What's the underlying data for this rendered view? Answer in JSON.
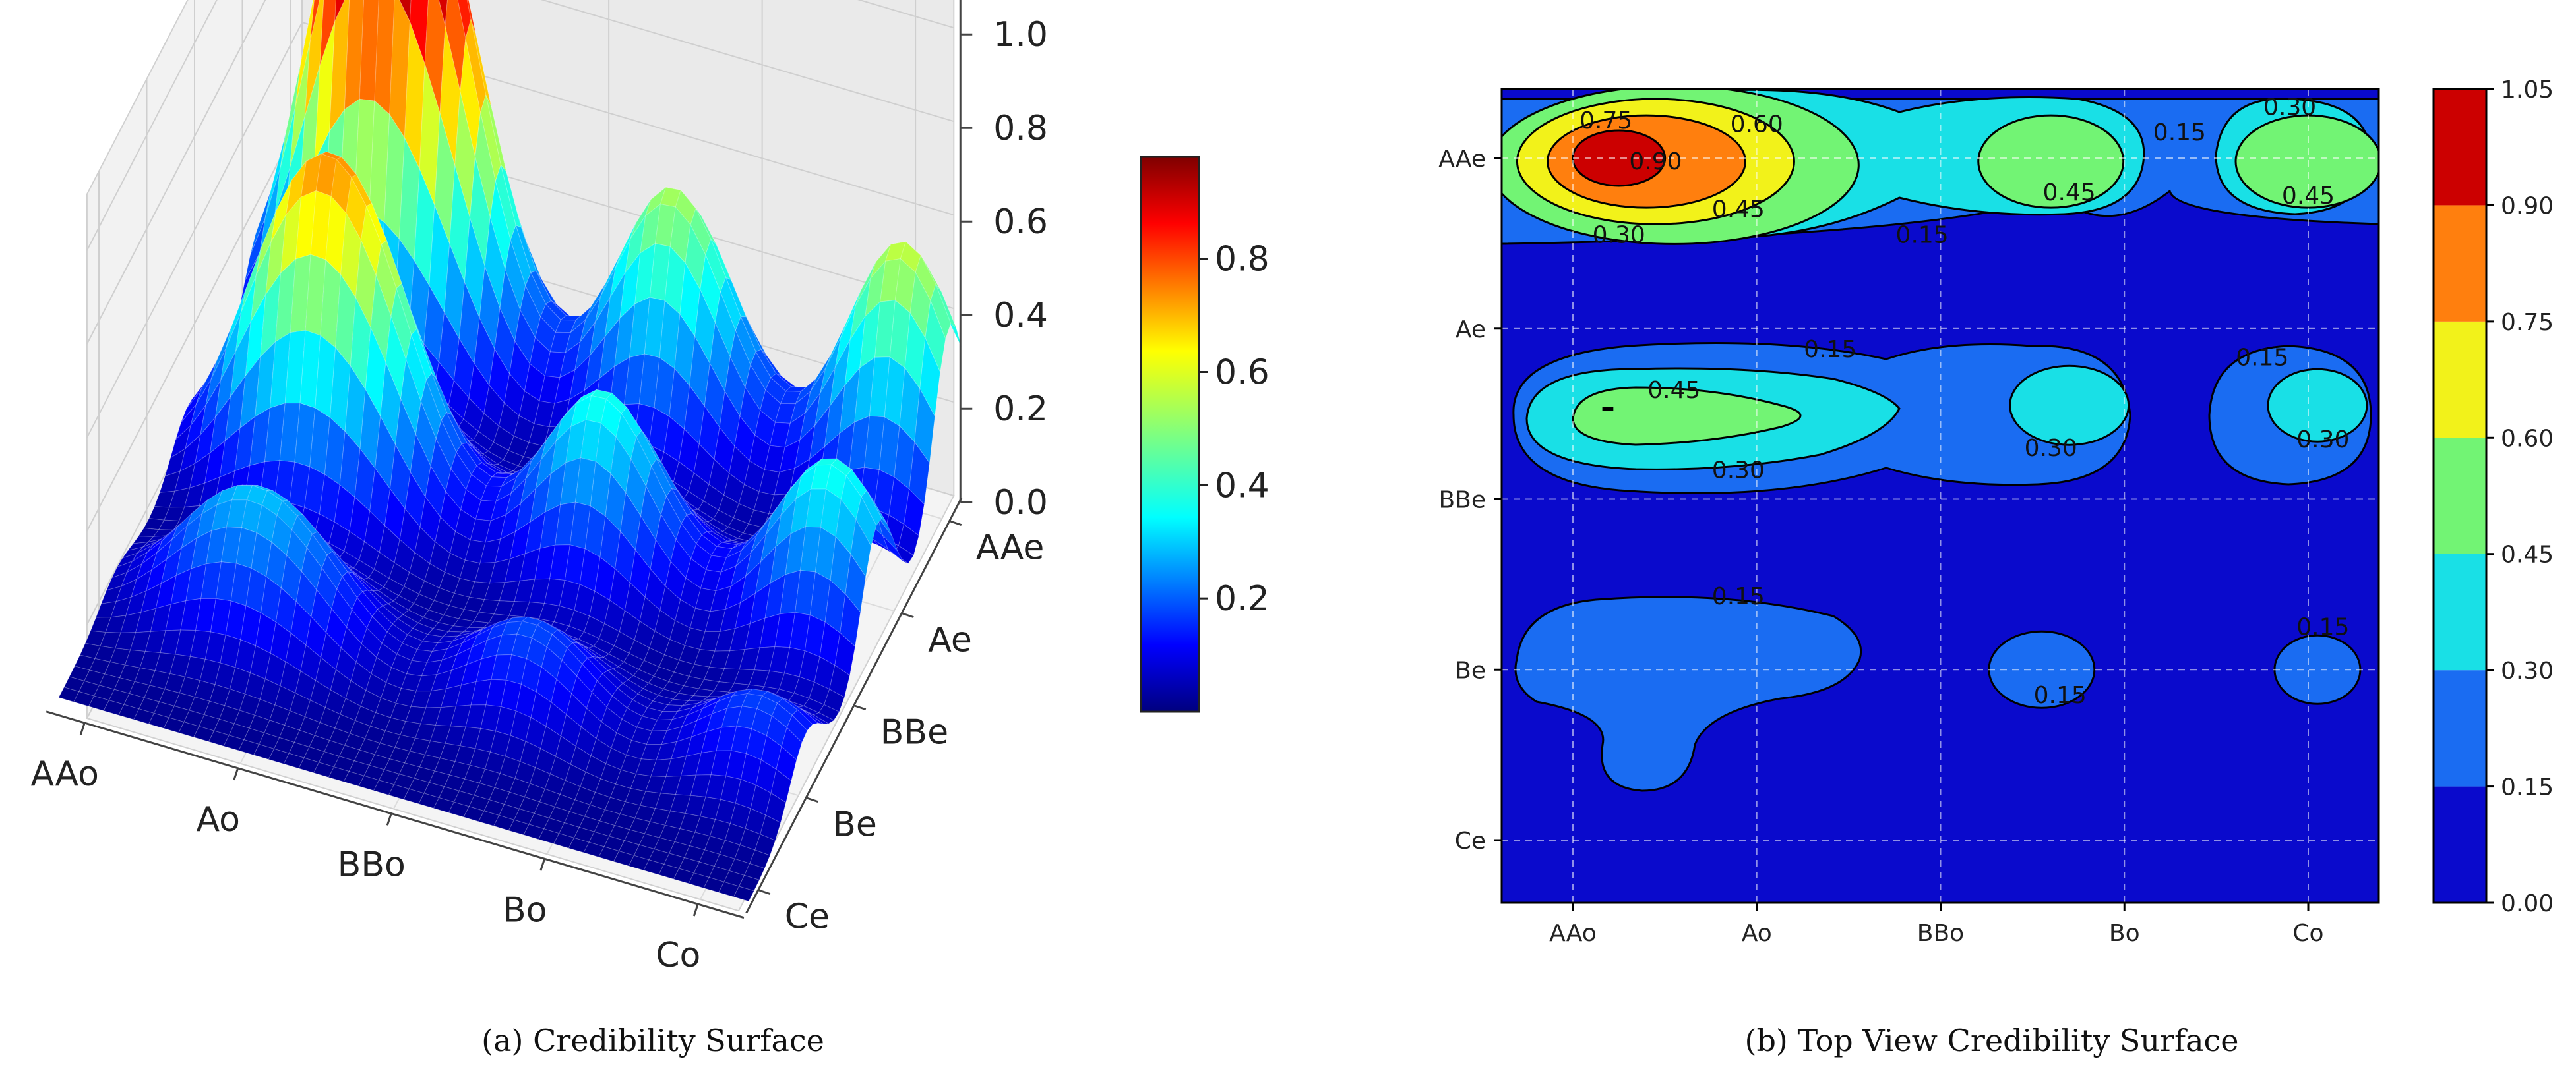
{
  "chart_data": [
    {
      "type": "surface3d",
      "caption": "(a) Credibility Surface",
      "x_categories": [
        "AAo",
        "Ao",
        "BBo",
        "Bo",
        "Co"
      ],
      "y_categories": [
        "Ce",
        "Be",
        "BBe",
        "Ae",
        "AAe"
      ],
      "zlim": [
        0.0,
        1.0
      ],
      "z_ticks": [
        "0.0",
        "0.2",
        "0.4",
        "0.6",
        "0.8",
        "1.0"
      ],
      "colorbar_ticks": [
        "0.2",
        "0.4",
        "0.6",
        "0.8"
      ],
      "colorbar_range": [
        0.0,
        0.98
      ],
      "colormap": "jet",
      "peaks": [
        {
          "x": 0.5,
          "y": 4.0,
          "z": 0.98
        },
        {
          "x": 1.0,
          "y": 4.0,
          "z": 0.6
        },
        {
          "x": 2.5,
          "y": 4.0,
          "z": 0.52
        },
        {
          "x": 4.0,
          "y": 4.0,
          "z": 0.55
        },
        {
          "x": 0.5,
          "y": 2.5,
          "z": 0.48
        },
        {
          "x": 1.0,
          "y": 2.5,
          "z": 0.42
        },
        {
          "x": 2.5,
          "y": 2.5,
          "z": 0.38
        },
        {
          "x": 4.0,
          "y": 2.5,
          "z": 0.38
        },
        {
          "x": 0.5,
          "y": 1.0,
          "z": 0.2
        },
        {
          "x": 1.0,
          "y": 1.0,
          "z": 0.17
        },
        {
          "x": 2.5,
          "y": 1.0,
          "z": 0.18
        },
        {
          "x": 4.0,
          "y": 1.0,
          "z": 0.17
        }
      ]
    },
    {
      "type": "contourf",
      "caption": "(b) Top View Credibility Surface",
      "x_categories": [
        "AAo",
        "Ao",
        "BBo",
        "Bo",
        "Co"
      ],
      "y_categories": [
        "Ce",
        "Be",
        "BBe",
        "Ae",
        "AAe"
      ],
      "levels": [
        "0.00",
        "0.15",
        "0.30",
        "0.45",
        "0.60",
        "0.75",
        "0.90",
        "1.05"
      ],
      "level_colors": [
        "#0a0acc",
        "#1a6cf2",
        "#19e0e6",
        "#72f474",
        "#f2f21a",
        "#ff7f0e",
        "#cc0000"
      ],
      "contour_labels": [
        {
          "text": "0.75",
          "x": 0.18,
          "y": 4.22
        },
        {
          "text": "0.60",
          "x": 1.0,
          "y": 4.2
        },
        {
          "text": "0.90",
          "x": 0.45,
          "y": 3.98
        },
        {
          "text": "0.45",
          "x": 0.9,
          "y": 3.7
        },
        {
          "text": "0.30",
          "x": 0.25,
          "y": 3.55
        },
        {
          "text": "0.15",
          "x": 1.9,
          "y": 3.55
        },
        {
          "text": "0.45",
          "x": 2.7,
          "y": 3.8
        },
        {
          "text": "0.15",
          "x": 3.3,
          "y": 4.15
        },
        {
          "text": "0.30",
          "x": 3.9,
          "y": 4.3
        },
        {
          "text": "0.45",
          "x": 4.0,
          "y": 3.78
        },
        {
          "text": "0.15",
          "x": 1.4,
          "y": 2.88
        },
        {
          "text": "0.45",
          "x": 0.55,
          "y": 2.64
        },
        {
          "text": "0.30",
          "x": 0.9,
          "y": 2.17
        },
        {
          "text": "0.30",
          "x": 2.6,
          "y": 2.3
        },
        {
          "text": "0.15",
          "x": 3.75,
          "y": 2.83
        },
        {
          "text": "0.30",
          "x": 4.08,
          "y": 2.35
        },
        {
          "text": "0.15",
          "x": 0.9,
          "y": 1.43
        },
        {
          "text": "0.15",
          "x": 2.65,
          "y": 0.85
        },
        {
          "text": "0.15",
          "x": 4.08,
          "y": 1.25
        }
      ]
    }
  ]
}
